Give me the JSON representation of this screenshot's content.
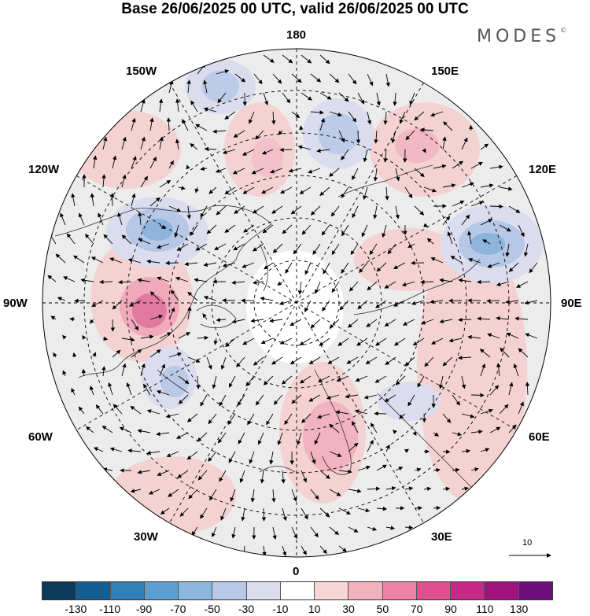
{
  "title": "Base 26/06/2025 00 UTC, valid 26/06/2025 00 UTC",
  "brand": {
    "name": "MODES",
    "mark": "©"
  },
  "longitude_labels": {
    "l180": "180",
    "l150w": "150W",
    "l150e": "150E",
    "l120w": "120W",
    "l120e": "120E",
    "l90w": "90W",
    "l90e": "90E",
    "l60w": "60W",
    "l60e": "60E",
    "l30w": "30W",
    "l30e": "30E",
    "l0": "0"
  },
  "reference_vector": {
    "label": "10"
  },
  "colorbar": {
    "colors": [
      "#0c3a5a",
      "#145f8f",
      "#2f7fb8",
      "#5a9fd0",
      "#8cb7dc",
      "#b7c9e6",
      "#dcdcef",
      "#ffffff",
      "#f7d6d6",
      "#f3b0bd",
      "#ec82a5",
      "#e0508f",
      "#c72a86",
      "#a0137f",
      "#6d0f7a"
    ],
    "ticks": [
      "-130",
      "-110",
      "-90",
      "-70",
      "-50",
      "-30",
      "-10",
      "10",
      "30",
      "50",
      "70",
      "90",
      "110",
      "130"
    ]
  }
}
